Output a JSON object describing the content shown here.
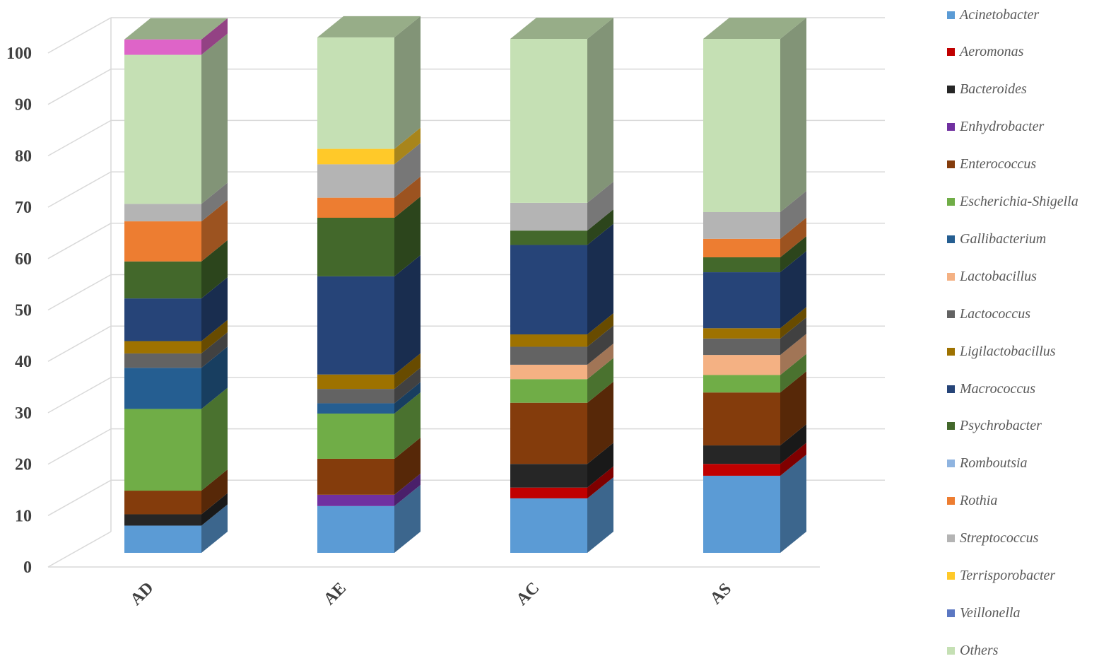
{
  "chart_data": {
    "type": "bar",
    "stacked": true,
    "three_d": true,
    "categories": [
      "AD",
      "AE",
      "AC",
      "AS"
    ],
    "y_ticks": [
      "0",
      "10",
      "20",
      "30",
      "40",
      "50",
      "60",
      "70",
      "80",
      "90",
      "100"
    ],
    "ylim": [
      0,
      100
    ],
    "grid": true,
    "legend_position": "right",
    "series": [
      {
        "name": "Acinetobacter",
        "color": "#5B9BD5",
        "values": [
          5.3,
          9.1,
          10.6,
          15.0
        ]
      },
      {
        "name": "Aeromonas",
        "color": "#C00000",
        "values": [
          0,
          0,
          2.1,
          2.3
        ]
      },
      {
        "name": "Bacteroides",
        "color": "#262626",
        "values": [
          2.2,
          0,
          4.6,
          3.6
        ]
      },
      {
        "name": "Enhydrobacter",
        "color": "#7030A0",
        "values": [
          0,
          2.2,
          0,
          0
        ]
      },
      {
        "name": "Enterococcus",
        "color": "#843C0C",
        "values": [
          4.6,
          7.0,
          11.9,
          10.3
        ]
      },
      {
        "name": "Escherichia-Shigella",
        "color": "#70AD47",
        "values": [
          15.9,
          8.8,
          4.6,
          3.4
        ]
      },
      {
        "name": "Gallibacterium",
        "color": "#255E91",
        "values": [
          8.0,
          2.0,
          0,
          0
        ]
      },
      {
        "name": "Lactobacillus",
        "color": "#F4B183",
        "values": [
          0,
          0,
          2.8,
          3.9
        ]
      },
      {
        "name": "Lactococcus",
        "color": "#636363",
        "values": [
          2.8,
          2.8,
          3.5,
          3.2
        ]
      },
      {
        "name": "Ligilactobacillus",
        "color": "#9E7200",
        "values": [
          2.4,
          2.8,
          2.4,
          2.0
        ]
      },
      {
        "name": "Macrococcus",
        "color": "#264478",
        "values": [
          8.3,
          19.1,
          17.4,
          10.9
        ]
      },
      {
        "name": "Psychrobacter",
        "color": "#43682B",
        "values": [
          7.2,
          11.4,
          2.8,
          2.9
        ]
      },
      {
        "name": "Romboutsia",
        "color": "#8FB4E0",
        "values": [
          0,
          0,
          0,
          0
        ]
      },
      {
        "name": "Rothia",
        "color": "#ED7D31",
        "values": [
          7.8,
          3.9,
          0,
          3.6
        ]
      },
      {
        "name": "Streptococcus",
        "color": "#B4B4B4",
        "values": [
          3.4,
          6.5,
          5.4,
          5.2
        ]
      },
      {
        "name": "Terrisporobacter",
        "color": "#FFC929",
        "values": [
          0,
          3.0,
          0,
          0
        ]
      },
      {
        "name": "Veillonella",
        "color": "#5B77C2",
        "values": [
          0,
          0,
          0,
          0
        ]
      },
      {
        "name": "Others",
        "color": "#C5E0B4",
        "values": [
          29.0,
          21.7,
          31.9,
          33.7
        ]
      },
      {
        "name": "",
        "color": "#DE64C8",
        "values": [
          3.0,
          0,
          0,
          0
        ]
      }
    ]
  },
  "legend": [
    {
      "label": "Acinetobacter",
      "color": "#5B9BD5"
    },
    {
      "label": "Aeromonas",
      "color": "#C00000"
    },
    {
      "label": "Bacteroides",
      "color": "#262626"
    },
    {
      "label": "Enhydrobacter",
      "color": "#7030A0"
    },
    {
      "label": "Enterococcus",
      "color": "#843C0C"
    },
    {
      "label": "Escherichia-Shigella",
      "color": "#70AD47"
    },
    {
      "label": "Gallibacterium",
      "color": "#255E91"
    },
    {
      "label": "Lactobacillus",
      "color": "#F4B183"
    },
    {
      "label": "Lactococcus",
      "color": "#636363"
    },
    {
      "label": "Ligilactobacillus",
      "color": "#9E7200"
    },
    {
      "label": "Macrococcus",
      "color": "#264478"
    },
    {
      "label": "Psychrobacter",
      "color": "#43682B"
    },
    {
      "label": "Romboutsia",
      "color": "#8FB4E0"
    },
    {
      "label": "Rothia",
      "color": "#ED7D31"
    },
    {
      "label": "Streptococcus",
      "color": "#B4B4B4"
    },
    {
      "label": "Terrisporobacter",
      "color": "#FFC929"
    },
    {
      "label": "Veillonella",
      "color": "#5B77C2"
    },
    {
      "label": "Others",
      "color": "#C5E0B4"
    }
  ]
}
